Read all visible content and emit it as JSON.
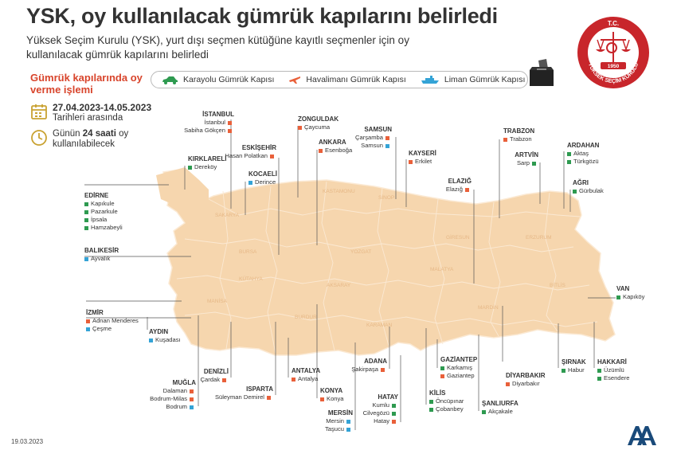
{
  "header": {
    "title": "YSK, oy kullanılacak gümrük kapılarını belirledi",
    "subtitle": "Yüksek Seçim Kurulu (YSK), yurt dışı seçmen kütüğüne kayıtlı seçmenler için oy kullanılacak gümrük kapılarını belirledi"
  },
  "seal": {
    "top_text": "T.C.",
    "year": "1950",
    "bottom_text": "YÜKSEK SEÇİM KURULU"
  },
  "sidebar": {
    "title": "Gümrük kapılarında oy verme işlemi",
    "date_range": "27.04.2023-14.05.2023",
    "date_note": "Tarihleri arasında",
    "hours_pre": "Günün ",
    "hours_bold": "24 saati",
    "hours_post": " oy kullanılabilecek"
  },
  "legend": {
    "road": "Karayolu Gümrük Kapısı",
    "air": "Havalimanı Gümrük Kapısı",
    "sea": "Liman Gümrük Kapısı"
  },
  "colors": {
    "road": "#2e9a50",
    "air": "#e9603a",
    "sea": "#34a3d6",
    "land": "#f6d6ae",
    "accent": "#d8442b"
  },
  "provinces": [
    {
      "id": "istanbul",
      "city": "İSTANBUL",
      "align": "r",
      "gates": [
        {
          "name": "İstanbul",
          "type": "air"
        },
        {
          "name": "Sabiha Gökçen",
          "type": "air"
        }
      ]
    },
    {
      "id": "zonguldak",
      "city": "ZONGULDAK",
      "align": "l",
      "gates": [
        {
          "name": "Çaycuma",
          "type": "air"
        }
      ]
    },
    {
      "id": "samsun",
      "city": "SAMSUN",
      "align": "r",
      "gates": [
        {
          "name": "Çarşamba",
          "type": "air"
        },
        {
          "name": "Samsun",
          "type": "sea"
        }
      ]
    },
    {
      "id": "trabzon",
      "city": "TRABZON",
      "align": "l",
      "gates": [
        {
          "name": "Trabzon",
          "type": "air"
        }
      ]
    },
    {
      "id": "ardahan",
      "city": "ARDAHAN",
      "align": "l",
      "gates": [
        {
          "name": "Aktaş",
          "type": "road"
        },
        {
          "name": "Türkgözü",
          "type": "road"
        }
      ]
    },
    {
      "id": "artvin",
      "city": "ARTVİN",
      "align": "r",
      "gates": [
        {
          "name": "Sarp",
          "type": "road"
        }
      ]
    },
    {
      "id": "agri",
      "city": "AĞRI",
      "align": "l",
      "gates": [
        {
          "name": "Gürbulak",
          "type": "road"
        }
      ]
    },
    {
      "id": "kirklareli",
      "city": "KIRKLARELİ",
      "align": "l",
      "gates": [
        {
          "name": "Dereköy",
          "type": "road"
        }
      ]
    },
    {
      "id": "eskisehir",
      "city": "ESKİŞEHİR",
      "align": "r",
      "gates": [
        {
          "name": "Hasan Polatkan",
          "type": "air"
        }
      ]
    },
    {
      "id": "ankara",
      "city": "ANKARA",
      "align": "l",
      "gates": [
        {
          "name": "Esenboğa",
          "type": "air"
        }
      ]
    },
    {
      "id": "kayseri",
      "city": "KAYSERİ",
      "align": "l",
      "gates": [
        {
          "name": "Erkilet",
          "type": "air"
        }
      ]
    },
    {
      "id": "kocaeli",
      "city": "KOCAELİ",
      "align": "l",
      "gates": [
        {
          "name": "Derince",
          "type": "sea"
        }
      ]
    },
    {
      "id": "elazig",
      "city": "ELAZIĞ",
      "align": "r",
      "gates": [
        {
          "name": "Elazığ",
          "type": "air"
        }
      ]
    },
    {
      "id": "edirne",
      "city": "EDİRNE",
      "align": "l",
      "gates": [
        {
          "name": "Kapıkule",
          "type": "road"
        },
        {
          "name": "Pazarkule",
          "type": "road"
        },
        {
          "name": "İpsala",
          "type": "road"
        },
        {
          "name": "Hamzabeyli",
          "type": "road"
        }
      ]
    },
    {
      "id": "balikesir",
      "city": "BALIKESİR",
      "align": "l",
      "gates": [
        {
          "name": "Ayvalık",
          "type": "sea"
        }
      ]
    },
    {
      "id": "van",
      "city": "VAN",
      "align": "l",
      "gates": [
        {
          "name": "Kapıköy",
          "type": "road"
        }
      ]
    },
    {
      "id": "izmir",
      "city": "İZMİR",
      "align": "l",
      "gates": [
        {
          "name": "Adnan Menderes",
          "type": "air"
        },
        {
          "name": "Çeşme",
          "type": "sea"
        }
      ]
    },
    {
      "id": "aydin",
      "city": "AYDIN",
      "align": "l",
      "gates": [
        {
          "name": "Kuşadası",
          "type": "sea"
        }
      ]
    },
    {
      "id": "adana",
      "city": "ADANA",
      "align": "r",
      "gates": [
        {
          "name": "Şakirpaşa",
          "type": "air"
        }
      ]
    },
    {
      "id": "gaziantep",
      "city": "GAZİANTEP",
      "align": "l",
      "gates": [
        {
          "name": "Karkamış",
          "type": "road"
        },
        {
          "name": "Gaziantep",
          "type": "air"
        }
      ]
    },
    {
      "id": "diyarbakir",
      "city": "DİYARBAKIR",
      "align": "l",
      "gates": [
        {
          "name": "Diyarbakır",
          "type": "air"
        }
      ]
    },
    {
      "id": "sirnak",
      "city": "ŞIRNAK",
      "align": "l",
      "gates": [
        {
          "name": "Habur",
          "type": "road"
        }
      ]
    },
    {
      "id": "hakkari",
      "city": "HAKKARİ",
      "align": "l",
      "gates": [
        {
          "name": "Üzümlü",
          "type": "road"
        },
        {
          "name": "Esendere",
          "type": "road"
        }
      ]
    },
    {
      "id": "denizli",
      "city": "DENİZLİ",
      "align": "r",
      "gates": [
        {
          "name": "Çardak",
          "type": "air"
        }
      ]
    },
    {
      "id": "antalya",
      "city": "ANTALYA",
      "align": "l",
      "gates": [
        {
          "name": "Antalya",
          "type": "air"
        }
      ]
    },
    {
      "id": "mugla",
      "city": "MUĞLA",
      "align": "r",
      "gates": [
        {
          "name": "Dalaman",
          "type": "air"
        },
        {
          "name": "Bodrum-Milas",
          "type": "air"
        },
        {
          "name": "Bodrum",
          "type": "sea"
        }
      ]
    },
    {
      "id": "isparta",
      "city": "ISPARTA",
      "align": "r",
      "gates": [
        {
          "name": "Süleyman Demirel",
          "type": "air"
        }
      ]
    },
    {
      "id": "konya",
      "city": "KONYA",
      "align": "l",
      "gates": [
        {
          "name": "Konya",
          "type": "air"
        }
      ]
    },
    {
      "id": "kilis",
      "city": "KİLİS",
      "align": "l",
      "gates": [
        {
          "name": "Öncüpınar",
          "type": "road"
        },
        {
          "name": "Çobanbey",
          "type": "road"
        }
      ]
    },
    {
      "id": "sanliurfa",
      "city": "ŞANLIURFA",
      "align": "l",
      "gates": [
        {
          "name": "Akçakale",
          "type": "road"
        }
      ]
    },
    {
      "id": "hatay",
      "city": "HATAY",
      "align": "r",
      "gates": [
        {
          "name": "Kumlu",
          "type": "road"
        },
        {
          "name": "Cilvegözü",
          "type": "road"
        },
        {
          "name": "Hatay",
          "type": "air"
        }
      ]
    },
    {
      "id": "mersin",
      "city": "MERSİN",
      "align": "r",
      "gates": [
        {
          "name": "Mersin",
          "type": "sea"
        },
        {
          "name": "Taşucu",
          "type": "sea"
        }
      ]
    }
  ],
  "footer": {
    "date": "19.03.2023",
    "agency": "AA"
  }
}
